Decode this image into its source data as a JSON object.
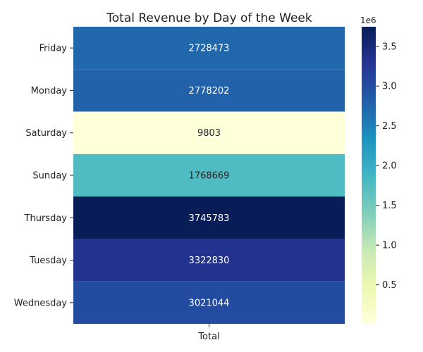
{
  "chart_data": {
    "type": "heatmap",
    "title": "Total Revenue by Day of the Week",
    "xlabel": "",
    "ylabel": "",
    "columns": [
      "Total"
    ],
    "rows": [
      "Friday",
      "Monday",
      "Saturday",
      "Sunday",
      "Thursday",
      "Tuesday",
      "Wednesday"
    ],
    "values": [
      2728473,
      2778202,
      9803,
      1768669,
      3745783,
      3322830,
      3021044
    ],
    "cell_labels": [
      "2728473",
      "2778202",
      "9803",
      "1768669",
      "3745783",
      "3322830",
      "3021044"
    ],
    "colormap": "YlGnBu",
    "colorbar": {
      "multiplier_label": "1e6",
      "ticks": [
        0.5,
        1.0,
        1.5,
        2.0,
        2.5,
        3.0,
        3.5
      ],
      "tick_labels": [
        "0.5",
        "1.0",
        "1.5",
        "2.0",
        "2.5",
        "3.0",
        "3.5"
      ],
      "scale": 1000000,
      "range": [
        9803,
        3745783
      ]
    },
    "grid": false,
    "legend": "colorbar-right"
  }
}
